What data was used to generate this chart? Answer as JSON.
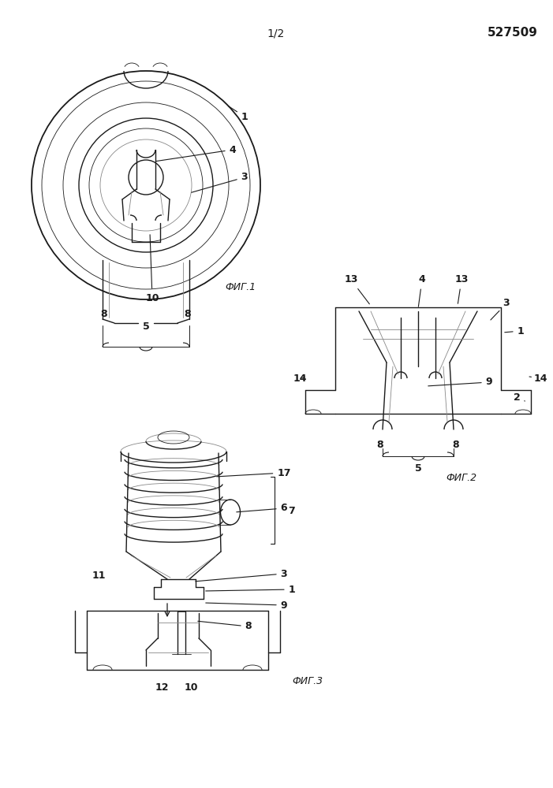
{
  "page_num": "1/2",
  "patent_num": "527509",
  "fig1_label": "ФИГ.1",
  "fig2_label": "ФИГ.2",
  "fig3_label": "ФИГ.3",
  "bg_color": "#ffffff",
  "line_color": "#1a1a1a",
  "gray_color": "#888888",
  "lw": 1.0,
  "tlw": 0.6
}
